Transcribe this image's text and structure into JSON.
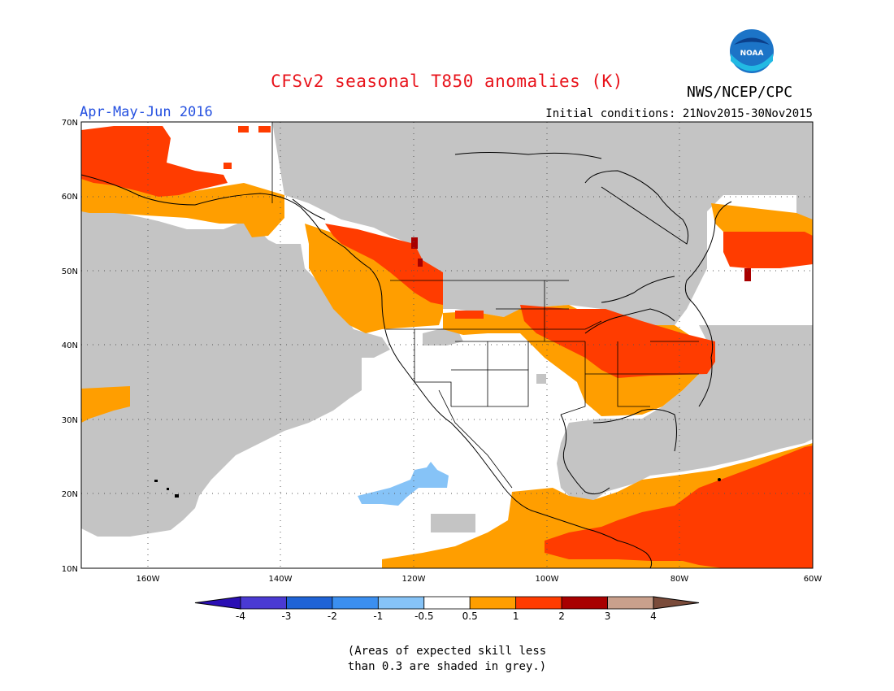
{
  "title": "CFSv2 seasonal T850 anomalies (K)",
  "agency": "NWS/NCEP/CPC",
  "logo_text": "NOAA",
  "period": "Apr-May-Jun 2016",
  "initial_conditions": "Initial conditions: 21Nov2015-30Nov2015",
  "latitude_labels": [
    "70N",
    "60N",
    "50N",
    "40N",
    "30N",
    "20N",
    "10N"
  ],
  "longitude_labels": [
    "160W",
    "140W",
    "120W",
    "100W",
    "80W",
    "60W"
  ],
  "colorbar": {
    "labels": [
      "-4",
      "-3",
      "-2",
      "-1",
      "-0.5",
      "0.5",
      "1",
      "2",
      "3",
      "4"
    ],
    "colors": [
      "#2a0fb4",
      "#4a3ad3",
      "#1f63d6",
      "#3b8ff0",
      "#86c3f7",
      "#ffffff",
      "#ff9e00",
      "#ff3c00",
      "#a80000",
      "#c9a08c",
      "#7a4b3a"
    ]
  },
  "legend_note": [
    "(Areas of expected skill less",
    "than 0.3 are shaded in grey.)"
  ],
  "colors": {
    "skill_grey": "#c4c4c4",
    "title_red": "#e8131b",
    "period_blue": "#2450e0"
  }
}
